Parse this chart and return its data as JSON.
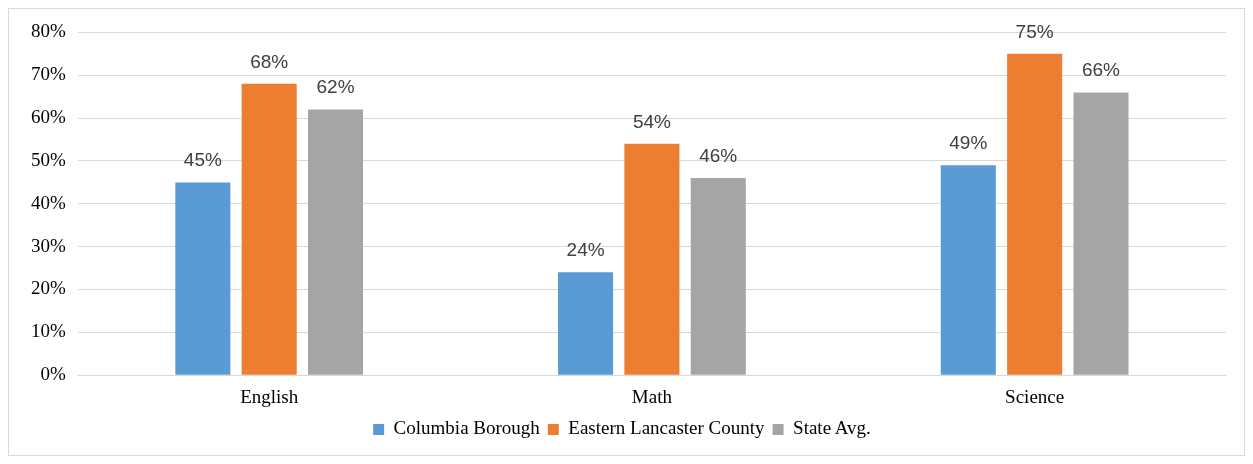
{
  "chart_data": {
    "type": "bar",
    "categories": [
      "English",
      "Math",
      "Science"
    ],
    "series": [
      {
        "name": "Columbia Borough",
        "color": "#5b9bd5",
        "values": [
          45,
          24,
          49
        ],
        "value_labels": [
          "45%",
          "24%",
          "49%"
        ]
      },
      {
        "name": "Eastern Lancaster County",
        "color": "#ed7d31",
        "values": [
          68,
          54,
          75
        ],
        "value_labels": [
          "68%",
          "54%",
          "75%"
        ]
      },
      {
        "name": "State Avg.",
        "color": "#a5a5a5",
        "values": [
          62,
          46,
          66
        ],
        "value_labels": [
          "62%",
          "46%",
          "66%"
        ]
      }
    ],
    "ylim": [
      0,
      80
    ],
    "yticks": [
      {
        "value": 0,
        "label": "0%"
      },
      {
        "value": 10,
        "label": "10%"
      },
      {
        "value": 20,
        "label": "20%"
      },
      {
        "value": 30,
        "label": "30%"
      },
      {
        "value": 40,
        "label": "40%"
      },
      {
        "value": 50,
        "label": "50%"
      },
      {
        "value": 60,
        "label": "60%"
      },
      {
        "value": 70,
        "label": "70%"
      },
      {
        "value": 80,
        "label": "80%"
      }
    ],
    "grid": "y",
    "legend": "bottom"
  }
}
